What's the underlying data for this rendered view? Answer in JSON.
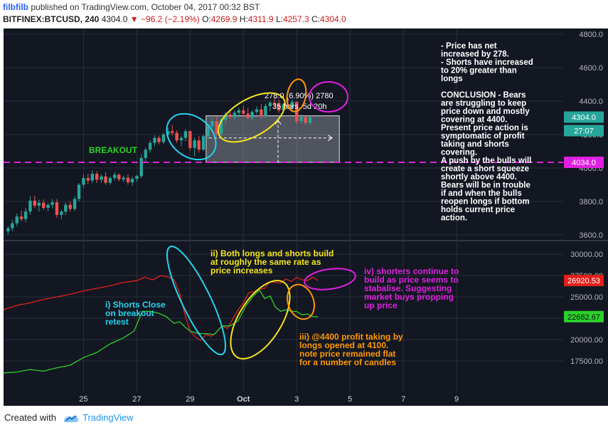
{
  "header": {
    "author": "filbfilb",
    "published": "published on TradingView.com, October 04, 2017 00:32 BST",
    "symbol": "BITFINEX:BTCUSD, 240",
    "last": "4304.0",
    "change": "−96.2 (−2.19%)",
    "o_label": "O:",
    "o_value": "4269.9",
    "h_label": "H:",
    "h_value": "4311.9",
    "l_label": "L:",
    "l_value": "4257.3",
    "c_label": "C:",
    "c_value": "4304.0"
  },
  "footer": {
    "created_with": "Created with",
    "brand": "TradingView"
  },
  "colors": {
    "background": "#131722",
    "grid": "#2a2e39",
    "up": "#26a69a",
    "down": "#ef5350",
    "magenta": "#e020e0",
    "cyan": "#22d3ee",
    "yellow": "#f5e51b",
    "orange": "#ff9800",
    "green": "#2bd12b",
    "red": "#e3211b"
  },
  "chart_data": [
    {
      "type": "candlestick",
      "title": "BITFINEX:BTCUSD, 240",
      "ylim": [
        3600,
        4800
      ],
      "y_ticks": [
        "4800.0",
        "4600.0",
        "4400.0",
        "4200.0",
        "4000.0",
        "3800.0",
        "3600.0"
      ],
      "x_ticks": [
        "25",
        "27",
        "29",
        "Oct",
        "3",
        "5",
        "7",
        "9"
      ],
      "x_tick_positions": [
        25,
        27,
        29,
        31,
        33,
        35,
        37,
        39
      ],
      "xlim": [
        22,
        43
      ],
      "candles": [
        [
          22.17,
          3622,
          3652,
          3602,
          3640
        ],
        [
          22.33,
          3640,
          3690,
          3622,
          3670
        ],
        [
          22.5,
          3670,
          3728,
          3652,
          3710
        ],
        [
          22.67,
          3710,
          3745,
          3682,
          3695
        ],
        [
          22.83,
          3695,
          3760,
          3675,
          3740
        ],
        [
          23.0,
          3740,
          3832,
          3722,
          3805
        ],
        [
          23.17,
          3805,
          3835,
          3760,
          3775
        ],
        [
          23.33,
          3775,
          3810,
          3740,
          3792
        ],
        [
          23.5,
          3792,
          3812,
          3750,
          3762
        ],
        [
          23.67,
          3762,
          3790,
          3742,
          3780
        ],
        [
          23.83,
          3780,
          3815,
          3760,
          3795
        ],
        [
          24.0,
          3795,
          3815,
          3702,
          3720
        ],
        [
          24.17,
          3720,
          3752,
          3695,
          3740
        ],
        [
          24.33,
          3740,
          3795,
          3720,
          3780
        ],
        [
          24.5,
          3780,
          3802,
          3740,
          3755
        ],
        [
          24.67,
          3755,
          3830,
          3742,
          3815
        ],
        [
          24.83,
          3815,
          3910,
          3800,
          3900
        ],
        [
          25.0,
          3900,
          3962,
          3880,
          3940
        ],
        [
          25.17,
          3940,
          3965,
          3902,
          3925
        ],
        [
          25.33,
          3925,
          3985,
          3910,
          3965
        ],
        [
          25.5,
          3965,
          3982,
          3910,
          3930
        ],
        [
          25.67,
          3930,
          3962,
          3912,
          3950
        ],
        [
          25.83,
          3950,
          3975,
          3900,
          3912
        ],
        [
          26.0,
          3912,
          3950,
          3900,
          3940
        ],
        [
          26.17,
          3940,
          3975,
          3925,
          3960
        ],
        [
          26.33,
          3960,
          3968,
          3920,
          3932
        ],
        [
          26.5,
          3932,
          3955,
          3915,
          3942
        ],
        [
          26.67,
          3942,
          3962,
          3900,
          3915
        ],
        [
          26.83,
          3915,
          3948,
          3895,
          3935
        ],
        [
          27.0,
          3935,
          3960,
          3918,
          3952
        ],
        [
          27.17,
          3952,
          4080,
          3940,
          4060
        ],
        [
          27.33,
          4060,
          4122,
          4040,
          4110
        ],
        [
          27.5,
          4110,
          4165,
          4092,
          4150
        ],
        [
          27.67,
          4150,
          4195,
          4130,
          4180
        ],
        [
          27.83,
          4180,
          4192,
          4140,
          4155
        ],
        [
          28.0,
          4155,
          4212,
          4142,
          4200
        ],
        [
          28.17,
          4200,
          4242,
          4178,
          4220
        ],
        [
          28.33,
          4220,
          4258,
          4195,
          4210
        ],
        [
          28.5,
          4210,
          4225,
          4150,
          4165
        ],
        [
          28.67,
          4165,
          4192,
          4130,
          4180
        ],
        [
          28.83,
          4180,
          4232,
          4160,
          4220
        ],
        [
          29.0,
          4220,
          4225,
          4105,
          4120
        ],
        [
          29.17,
          4120,
          4182,
          4072,
          4165
        ],
        [
          29.33,
          4165,
          4192,
          4092,
          4110
        ],
        [
          29.5,
          4110,
          4200,
          4100,
          4190
        ],
        [
          29.67,
          4190,
          4262,
          4170,
          4250
        ],
        [
          29.83,
          4250,
          4300,
          4240,
          4280
        ],
        [
          30.0,
          4280,
          4308,
          4190,
          4205
        ],
        [
          30.17,
          4205,
          4300,
          4190,
          4290
        ],
        [
          30.33,
          4290,
          4335,
          4260,
          4320
        ],
        [
          30.5,
          4320,
          4345,
          4295,
          4305
        ],
        [
          30.67,
          4305,
          4345,
          4290,
          4330
        ],
        [
          30.83,
          4330,
          4360,
          4300,
          4345
        ],
        [
          31.0,
          4345,
          4370,
          4310,
          4325
        ],
        [
          31.17,
          4325,
          4360,
          4290,
          4300
        ],
        [
          31.33,
          4300,
          4345,
          4285,
          4335
        ],
        [
          31.5,
          4335,
          4370,
          4320,
          4350
        ],
        [
          31.67,
          4350,
          4382,
          4295,
          4310
        ],
        [
          31.83,
          4310,
          4385,
          4300,
          4370
        ],
        [
          32.0,
          4370,
          4402,
          4340,
          4390
        ],
        [
          32.17,
          4390,
          4425,
          4360,
          4380
        ],
        [
          32.33,
          4380,
          4410,
          4330,
          4345
        ],
        [
          32.5,
          4345,
          4388,
          4340,
          4380
        ],
        [
          32.67,
          4380,
          4420,
          4348,
          4360
        ],
        [
          32.83,
          4360,
          4412,
          4340,
          4395
        ],
        [
          33.0,
          4395,
          4400,
          4265,
          4280
        ],
        [
          33.17,
          4280,
          4320,
          4262,
          4305
        ],
        [
          33.33,
          4305,
          4312,
          4255,
          4270
        ],
        [
          33.5,
          4270,
          4312,
          4257,
          4304
        ]
      ],
      "annotations": {
        "measure_text": "278.0 (6.90%) 2780",
        "measure_text2": "35 bars, 5d 20h",
        "breakout_label": "BREAKOUT",
        "breakout_price": 4034,
        "notes": [
          "- Price has net",
          "increased by 278.",
          "- Shorts have increased",
          "to 20% greater than",
          "longs",
          "",
          "CONCLUSION - Bears",
          "are struggling to keep",
          "price down and mostly",
          "covering at 4400.",
          "Present price action is",
          "symptomatic of profit",
          "taking and shorts",
          "covering.",
          "A push by the bulls will",
          "create a short squeeze",
          "shortly above 4400.",
          "Bears will be in trouble",
          "if and when the bulls",
          "reopen longs if bottom",
          "holds current price",
          "action."
        ]
      },
      "price_labels": {
        "last": "4304.0",
        "countdown": "27:07",
        "line": "4034.0"
      }
    },
    {
      "type": "line",
      "ylim": [
        15000,
        31000
      ],
      "y_ticks": [
        "30000.00",
        "27500.00",
        "25000.00",
        "22500.00",
        "20000.00",
        "17500.00"
      ],
      "series": [
        {
          "color": "#e3211b",
          "x": [
            22.0,
            22.5,
            23.0,
            23.5,
            24.0,
            24.5,
            25.0,
            25.5,
            26.0,
            26.5,
            27.0,
            27.3,
            27.6,
            27.9,
            28.2,
            28.4,
            28.6,
            28.8,
            29.0,
            29.2,
            29.4,
            29.6,
            29.8,
            30.0,
            30.2,
            30.4,
            30.6,
            30.8,
            31.0,
            31.2,
            31.4,
            31.6,
            31.8,
            32.0,
            32.2,
            32.4,
            32.6,
            32.8,
            33.0,
            33.2,
            33.4,
            33.6,
            33.8
          ],
          "y": [
            23500,
            24000,
            24300,
            24700,
            25000,
            25300,
            25700,
            26000,
            26300,
            26700,
            26900,
            27300,
            27000,
            27500,
            27300,
            27000,
            25500,
            23000,
            21000,
            20300,
            19900,
            20600,
            20400,
            20900,
            21600,
            21300,
            22400,
            23500,
            24300,
            25500,
            25600,
            25900,
            26000,
            26800,
            26700,
            26600,
            27100,
            26800,
            27300,
            27000,
            26900,
            27300,
            26920.53
          ]
        },
        {
          "color": "#2bd12b",
          "x": [
            22.0,
            22.5,
            23.0,
            23.5,
            24.0,
            24.5,
            25.0,
            25.5,
            26.0,
            26.5,
            26.9,
            27.2,
            27.5,
            27.8,
            28.1,
            28.4,
            28.6,
            28.8,
            29.0,
            29.3,
            29.6,
            29.9,
            30.2,
            30.5,
            30.8,
            31.1,
            31.4,
            31.6,
            31.8,
            32.0,
            32.2,
            32.4,
            32.6,
            32.8,
            33.0,
            33.2,
            33.4,
            33.6,
            33.8
          ],
          "y": [
            16100,
            16200,
            16500,
            16300,
            16700,
            17000,
            17900,
            18500,
            19500,
            20200,
            21000,
            23300,
            23300,
            23100,
            22700,
            21900,
            22100,
            21500,
            21000,
            20700,
            20700,
            20600,
            21600,
            21600,
            22200,
            24000,
            25200,
            25800,
            24800,
            25100,
            23800,
            23300,
            23500,
            23300,
            23300,
            22900,
            23000,
            22700,
            22682.67
          ]
        }
      ],
      "price_labels": {
        "red": "26920.53",
        "green": "22682.67"
      },
      "annotations": {
        "cyan_text": [
          "i) Shorts Close",
          "on breakout",
          "retest"
        ],
        "yellow_text": [
          "ii) Both longs and shorts build",
          "at roughly the same rate as",
          "price increases"
        ],
        "orange_text": [
          "iii) @4400 profit taking by",
          "longs opened at 4100.",
          "note price remained flat",
          "for a number of candles"
        ],
        "magenta_text": [
          "iv) shorters continue to",
          "build as price seems to",
          "stabalise.  Suggesting",
          "market buys propping",
          "up price"
        ]
      }
    }
  ]
}
